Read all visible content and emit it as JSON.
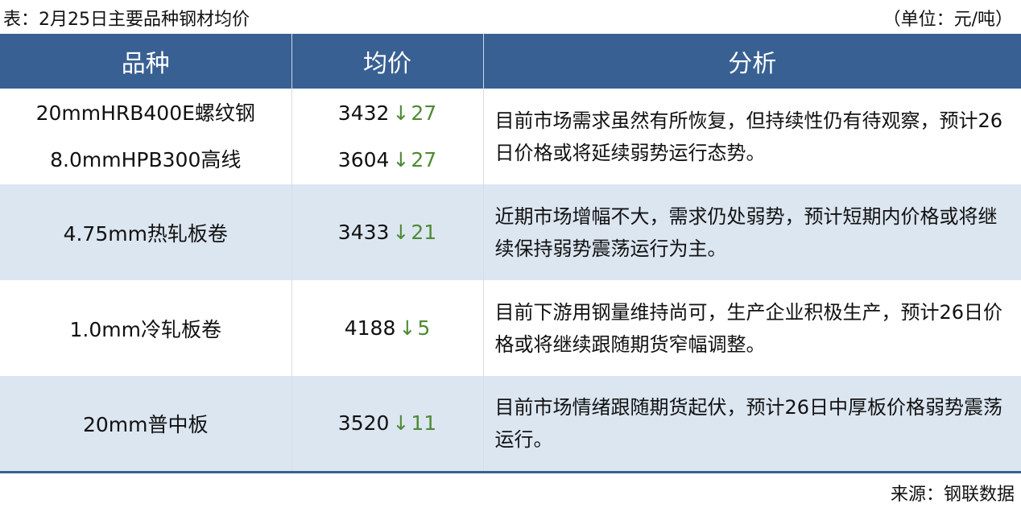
{
  "title": "表：2月25日主要品种钢材均价",
  "unit": "（单位：元/吨）",
  "headers": [
    "品种",
    "均价",
    "分析"
  ],
  "colors": {
    "header_bg": "#386092",
    "alt_row_bg": "#dce6f1",
    "down": "#4e8a35"
  },
  "rows": [
    {
      "items": [
        {
          "name": "20mmHRB400E螺纹钢",
          "price": "3432",
          "arrow": "↓",
          "change": "27"
        },
        {
          "name": "8.0mmHPB300高线",
          "price": "3604",
          "arrow": "↓",
          "change": "27"
        }
      ],
      "analysis": "目前市场需求虽然有所恢复，但持续性仍有待观察，预计26日价格或将延续弱势运行态势。"
    },
    {
      "items": [
        {
          "name": "4.75mm热轧板卷",
          "price": "3433",
          "arrow": "↓",
          "change": "21"
        }
      ],
      "analysis": "近期市场增幅不大，需求仍处弱势，预计短期内价格或将继续保持弱势震荡运行为主。"
    },
    {
      "items": [
        {
          "name": "1.0mm冷轧板卷",
          "price": "4188",
          "arrow": "↓",
          "change": "5"
        }
      ],
      "analysis": "目前下游用钢量维持尚可，生产企业积极生产，预计26日价格或将继续跟随期货窄幅调整。"
    },
    {
      "items": [
        {
          "name": "20mm普中板",
          "price": "3520",
          "arrow": "↓",
          "change": "11"
        }
      ],
      "analysis": "目前市场情绪跟随期货起伏，预计26日中厚板价格弱势震荡运行。"
    }
  ],
  "source": "来源：钢联数据"
}
